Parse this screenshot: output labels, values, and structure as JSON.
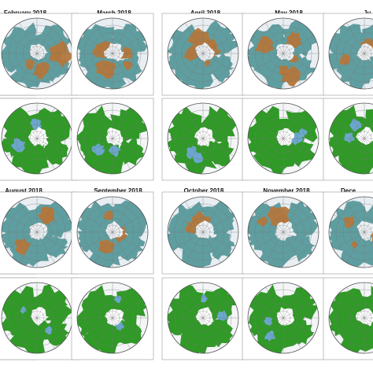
{
  "figure": {
    "rows": [
      {
        "months": [
          "",
          "February 2018",
          "March 2018",
          "April 2018",
          "May 2018",
          "Ju"
        ],
        "maps": [
          "top",
          "bottom"
        ]
      },
      {
        "months": [
          "",
          "August 2018",
          "September 2018",
          "October 2018",
          "November 2018",
          "Dece"
        ],
        "maps": [
          "top",
          "bottom"
        ]
      }
    ],
    "map_styles": {
      "top": {
        "ocean": "#e9eef3",
        "land": "#5f9ea0",
        "highlight": "#b5773a",
        "ice": "#eef1f4"
      },
      "bottom": {
        "ocean": "#f3f5f7",
        "land": "#2f9a26",
        "highlight": "#6fa8d6",
        "ice": "#ffffff"
      }
    },
    "colors": {
      "graticule": "#777777",
      "frame": "#9a9a9a",
      "title": "#111111"
    }
  }
}
